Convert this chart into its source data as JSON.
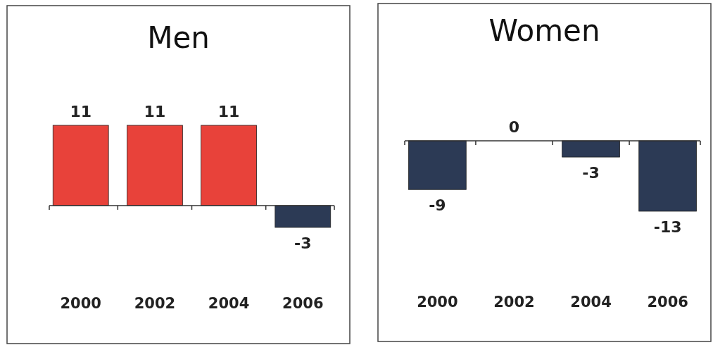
{
  "chart_data": [
    {
      "type": "bar",
      "title": "Men",
      "categories": [
        "2000",
        "2002",
        "2004",
        "2006"
      ],
      "values": [
        11,
        11,
        11,
        -3
      ],
      "colors": [
        "#e8423a",
        "#e8423a",
        "#e8423a",
        "#2c3a55"
      ],
      "data_labels": true
    },
    {
      "type": "bar",
      "title": "Women",
      "categories": [
        "2000",
        "2002",
        "2004",
        "2006"
      ],
      "values": [
        -9,
        0,
        -3,
        -13
      ],
      "colors": [
        "#2c3a55",
        "#2c3a55",
        "#2c3a55",
        "#2c3a55"
      ],
      "data_labels": true
    }
  ]
}
